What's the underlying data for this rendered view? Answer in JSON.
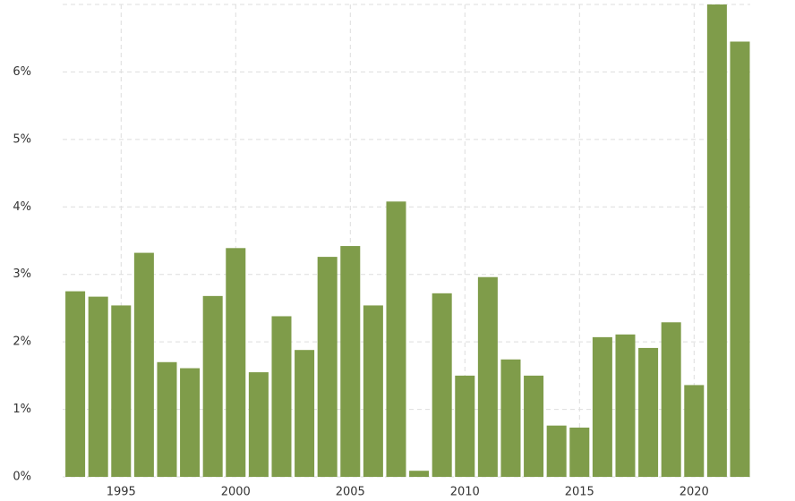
{
  "chart_data": {
    "type": "bar",
    "x": [
      1993,
      1994,
      1995,
      1996,
      1997,
      1998,
      1999,
      2000,
      2001,
      2002,
      2003,
      2004,
      2005,
      2006,
      2007,
      2008,
      2009,
      2010,
      2011,
      2012,
      2013,
      2014,
      2015,
      2016,
      2017,
      2018,
      2019,
      2020,
      2021,
      2022
    ],
    "values": [
      2.75,
      2.67,
      2.54,
      3.32,
      1.7,
      1.61,
      2.68,
      3.39,
      1.55,
      2.38,
      1.88,
      3.26,
      3.42,
      2.54,
      4.08,
      0.09,
      2.72,
      1.5,
      2.96,
      1.74,
      1.5,
      0.76,
      0.73,
      2.07,
      2.11,
      1.91,
      2.29,
      1.36,
      7.04,
      6.45
    ],
    "color": "#7f9c4a",
    "xlim": [
      1992.45,
      2022.45
    ],
    "xticks": [
      1995,
      2000,
      2005,
      2010,
      2015,
      2020
    ],
    "ylim": [
      0,
      7
    ],
    "yticks": [
      {
        "value": 0,
        "label": "0%"
      },
      {
        "value": 1,
        "label": "1%"
      },
      {
        "value": 2,
        "label": "2%"
      },
      {
        "value": 3,
        "label": "3%"
      },
      {
        "value": 4,
        "label": "4%"
      },
      {
        "value": 5,
        "label": "5%"
      },
      {
        "value": 6,
        "label": "6%"
      }
    ],
    "grid": true
  }
}
